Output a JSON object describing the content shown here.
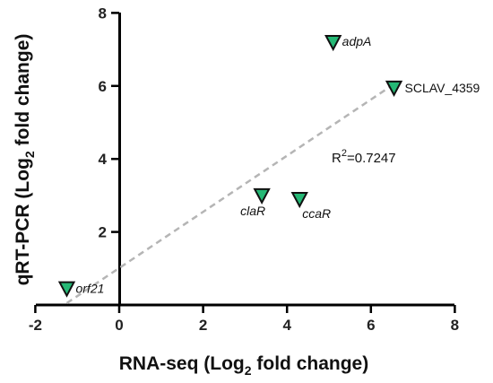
{
  "chart_data": {
    "type": "scatter",
    "xlabel_parts": [
      "RNA-seq (Log",
      "2",
      " fold change)"
    ],
    "ylabel_parts": [
      "qRT-PCR (Log",
      "2",
      " fold change)"
    ],
    "xlim": [
      -2,
      8
    ],
    "ylim": [
      0,
      8
    ],
    "xticks": [
      -2,
      0,
      2,
      4,
      6,
      8
    ],
    "yticks": [
      2,
      4,
      6,
      8
    ],
    "grid": false,
    "points": [
      {
        "label": "adpA",
        "italic": true,
        "x": 5.1,
        "y": 7.2
      },
      {
        "label": "SCLAV_4359",
        "italic": false,
        "x": 6.55,
        "y": 5.95
      },
      {
        "label": "claR",
        "italic": true,
        "x": 3.4,
        "y": 3.0
      },
      {
        "label": "ccaR",
        "italic": true,
        "x": 4.3,
        "y": 2.9
      },
      {
        "label": "orf21",
        "italic": true,
        "x": -1.25,
        "y": 0.45
      }
    ],
    "marker": {
      "shape": "inverted-triangle",
      "color": "#25b875",
      "stroke": "#111111"
    },
    "trendline": {
      "style": "dashed",
      "color": "#b5b5b5",
      "start": [
        -1.25,
        0.05
      ],
      "end": [
        6.55,
        6.05
      ]
    },
    "annotation_parts": [
      "R",
      "2",
      "=0.7247"
    ]
  }
}
